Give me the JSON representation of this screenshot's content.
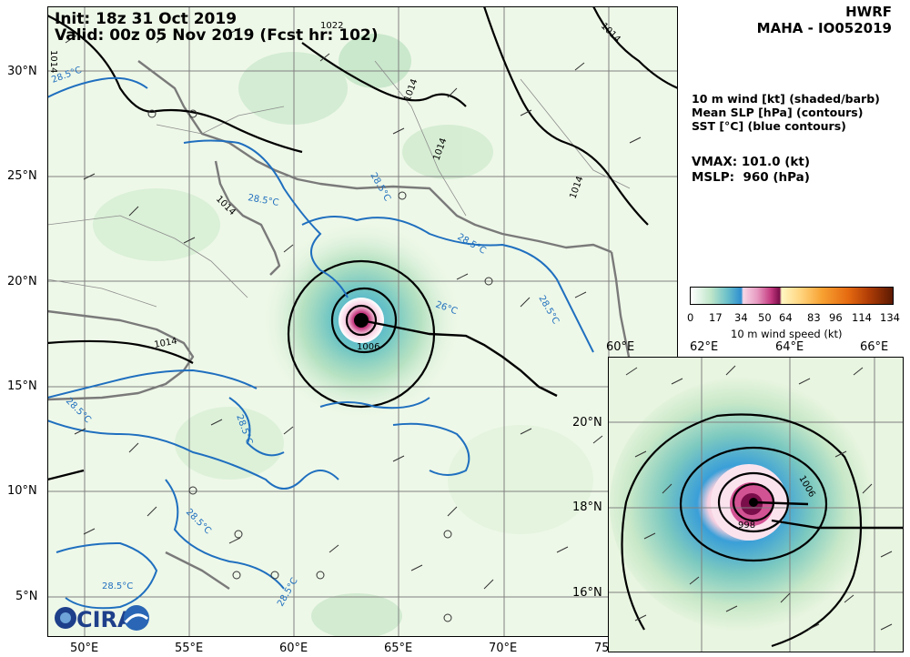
{
  "header": {
    "init": "Init: 18z 31 Oct 2019",
    "valid": "Valid: 00z 05 Nov 2019 (Fcst hr: 102)",
    "model": "HWRF",
    "storm": "MAHA - IO052019"
  },
  "legend_text": {
    "line1": "10 m wind [kt] (shaded/barb)",
    "line2": "Mean SLP [hPa] (contours)",
    "line3": "SST [°C] (blue contours)"
  },
  "stats": {
    "vmax": "VMAX: 101.0 (kt)",
    "mslp": "MSLP:  960 (hPa)"
  },
  "colorbar": {
    "label": "10 m wind speed (kt)",
    "ticks": [
      "0",
      "17",
      "34",
      "50",
      "64",
      "83",
      "96",
      "114",
      "134"
    ]
  },
  "main_map": {
    "lon_labels": [
      "50°E",
      "55°E",
      "60°E",
      "65°E",
      "70°E",
      "75"
    ],
    "lat_labels": [
      "30°N",
      "25°N",
      "20°N",
      "15°N",
      "10°N",
      "5°N"
    ],
    "slp_labels": [
      "1022",
      "1014",
      "1014",
      "1014",
      "1014",
      "1014",
      "1014",
      "1014",
      "1006"
    ],
    "sst_labels": [
      "28.5°C",
      "28.5°C",
      "28.5°C",
      "28.5°C",
      "26°C",
      "28.5°C",
      "28.5°C",
      "28.5°C",
      "28.5°C",
      "28.5°C",
      "28.5°C"
    ]
  },
  "inset_map": {
    "lon_labels": [
      "60°E",
      "62°E",
      "64°E",
      "66°E"
    ],
    "lat_labels": [
      "20°N",
      "18°N",
      "16°N"
    ],
    "slp_labels": [
      "1006",
      "998"
    ]
  },
  "logo": {
    "text": "CIRA"
  },
  "colors": {
    "sst": "#1f6fbf",
    "slp": "#000000",
    "grid": "#808080",
    "coast": "#7a7a7a",
    "track": "#000000"
  }
}
